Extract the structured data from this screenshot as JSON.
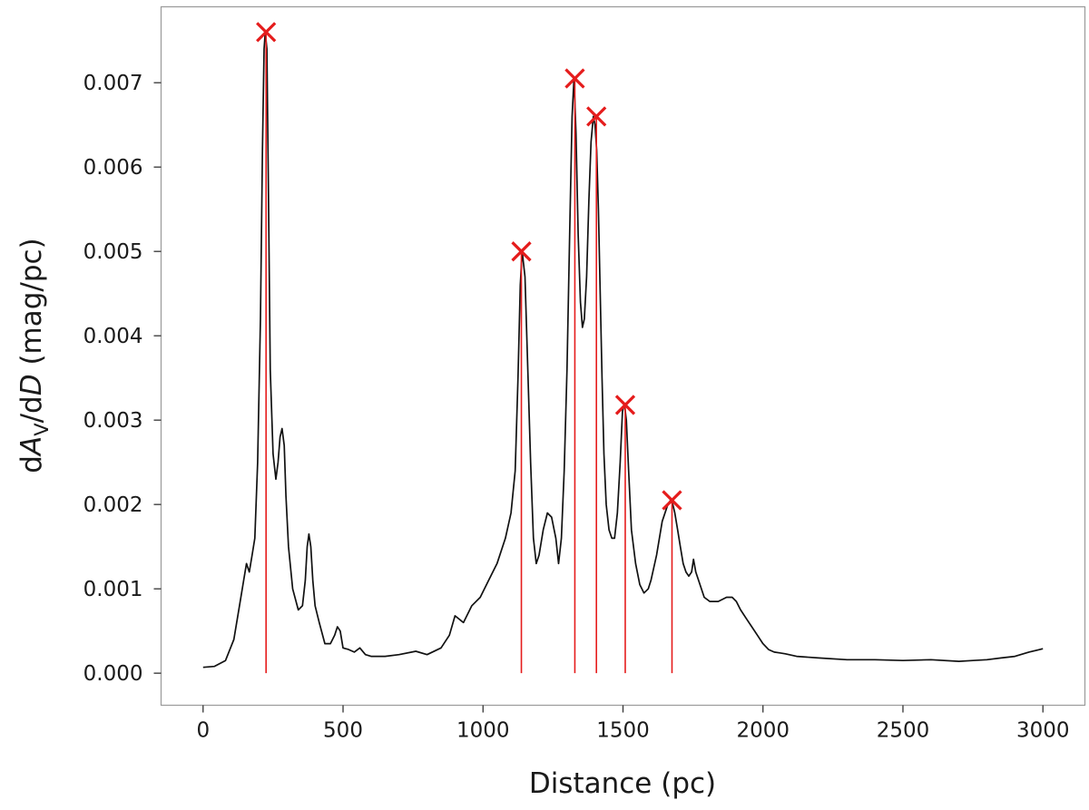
{
  "chart_data": {
    "type": "line",
    "xlabel": "Distance (pc)",
    "ylabel_parts": [
      "d",
      "A",
      "V",
      "/d",
      "D",
      " (mag/pc)"
    ],
    "xlim": [
      -150,
      3150
    ],
    "ylim": [
      -0.00038,
      0.0079
    ],
    "xticks": [
      0,
      500,
      1000,
      1500,
      2000,
      2500,
      3000
    ],
    "yticks": [
      0.0,
      0.001,
      0.002,
      0.003,
      0.004,
      0.005,
      0.006,
      0.007
    ],
    "ytick_labels": [
      "0.000",
      "0.001",
      "0.002",
      "0.003",
      "0.004",
      "0.005",
      "0.006",
      "0.007"
    ],
    "grid": false,
    "series": [
      {
        "color": "#000000",
        "x": [
          0,
          40,
          80,
          110,
          130,
          145,
          155,
          165,
          175,
          185,
          195,
          205,
          212,
          218,
          222,
          228,
          234,
          240,
          250,
          260,
          268,
          275,
          282,
          290,
          296,
          305,
          320,
          340,
          355,
          365,
          372,
          378,
          385,
          392,
          400,
          415,
          435,
          455,
          470,
          480,
          490,
          500,
          520,
          540,
          560,
          580,
          600,
          650,
          700,
          760,
          800,
          850,
          880,
          900,
          930,
          960,
          990,
          1020,
          1050,
          1080,
          1100,
          1115,
          1125,
          1133,
          1140,
          1150,
          1160,
          1170,
          1180,
          1190,
          1200,
          1215,
          1230,
          1245,
          1260,
          1270,
          1280,
          1290,
          1300,
          1310,
          1318,
          1325,
          1332,
          1340,
          1348,
          1355,
          1362,
          1370,
          1378,
          1386,
          1394,
          1400,
          1406,
          1412,
          1418,
          1425,
          1432,
          1440,
          1450,
          1460,
          1470,
          1480,
          1490,
          1498,
          1505,
          1512,
          1520,
          1530,
          1545,
          1560,
          1575,
          1590,
          1600,
          1620,
          1640,
          1660,
          1670,
          1678,
          1685,
          1695,
          1705,
          1715,
          1725,
          1735,
          1745,
          1752,
          1760,
          1770,
          1790,
          1810,
          1840,
          1870,
          1890,
          1905,
          1920,
          1940,
          1960,
          1980,
          2000,
          2020,
          2040,
          2060,
          2080,
          2120,
          2200,
          2300,
          2400,
          2500,
          2600,
          2700,
          2750,
          2800,
          2850,
          2900,
          2950,
          3000
        ],
        "y": [
          7e-05,
          8e-05,
          0.00015,
          0.0004,
          0.0008,
          0.0011,
          0.0013,
          0.0012,
          0.0014,
          0.0016,
          0.0025,
          0.0042,
          0.0062,
          0.0074,
          0.0076,
          0.0074,
          0.0055,
          0.0036,
          0.0026,
          0.0023,
          0.0025,
          0.0028,
          0.0029,
          0.0027,
          0.0021,
          0.0015,
          0.001,
          0.00075,
          0.0008,
          0.0011,
          0.0015,
          0.00165,
          0.0015,
          0.0011,
          0.0008,
          0.0006,
          0.00035,
          0.00035,
          0.00045,
          0.00055,
          0.0005,
          0.0003,
          0.00028,
          0.00025,
          0.0003,
          0.00022,
          0.0002,
          0.0002,
          0.00022,
          0.00026,
          0.00022,
          0.0003,
          0.00045,
          0.00068,
          0.0006,
          0.0008,
          0.0009,
          0.0011,
          0.0013,
          0.0016,
          0.0019,
          0.0024,
          0.0035,
          0.0046,
          0.005,
          0.0047,
          0.0036,
          0.0025,
          0.0016,
          0.0013,
          0.0014,
          0.0017,
          0.0019,
          0.00185,
          0.0016,
          0.0013,
          0.0016,
          0.0024,
          0.0036,
          0.0053,
          0.0066,
          0.00705,
          0.0064,
          0.0052,
          0.0044,
          0.0041,
          0.0042,
          0.0047,
          0.0056,
          0.0063,
          0.0066,
          0.0065,
          0.0062,
          0.0055,
          0.0046,
          0.0035,
          0.0026,
          0.002,
          0.0017,
          0.0016,
          0.0016,
          0.0019,
          0.0025,
          0.0031,
          0.0032,
          0.003,
          0.0024,
          0.0017,
          0.0013,
          0.00105,
          0.00095,
          0.001,
          0.0011,
          0.0014,
          0.0018,
          0.002,
          0.00205,
          0.002,
          0.0019,
          0.0017,
          0.0015,
          0.0013,
          0.0012,
          0.00115,
          0.0012,
          0.00135,
          0.0012,
          0.0011,
          0.0009,
          0.00085,
          0.00085,
          0.0009,
          0.0009,
          0.00085,
          0.00075,
          0.00065,
          0.00055,
          0.00045,
          0.00035,
          0.00028,
          0.00025,
          0.00024,
          0.00023,
          0.0002,
          0.00018,
          0.00016,
          0.00016,
          0.00015,
          0.00016,
          0.00014,
          0.00015,
          0.00016,
          0.00018,
          0.0002,
          0.00025,
          0.00029
        ]
      }
    ],
    "peaks": {
      "color": "#e51c1c",
      "x": [
        225,
        1137,
        1328,
        1405,
        1508,
        1675
      ],
      "y": [
        0.0076,
        0.005,
        0.00705,
        0.0066,
        0.00318,
        0.00205
      ]
    }
  }
}
